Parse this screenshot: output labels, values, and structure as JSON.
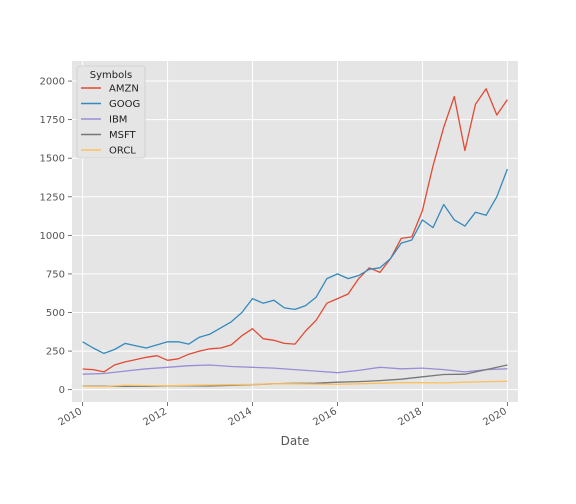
{
  "chart_data": {
    "type": "line",
    "title": "",
    "xlabel": "Date",
    "ylabel": "",
    "xlim": [
      2009.75,
      2020.25
    ],
    "ylim": [
      -80,
      2130
    ],
    "x_ticks": [
      2010,
      2012,
      2014,
      2016,
      2018,
      2020
    ],
    "y_ticks": [
      0,
      250,
      500,
      750,
      1000,
      1250,
      1500,
      1750,
      2000
    ],
    "grid": true,
    "legend": {
      "title": "Symbols",
      "position": "top-left"
    },
    "series": [
      {
        "name": "AMZN",
        "color": "#E24A33",
        "x": [
          2010.0,
          2010.25,
          2010.5,
          2010.75,
          2011.0,
          2011.25,
          2011.5,
          2011.75,
          2012.0,
          2012.25,
          2012.5,
          2012.75,
          2013.0,
          2013.25,
          2013.5,
          2013.75,
          2014.0,
          2014.25,
          2014.5,
          2014.75,
          2015.0,
          2015.25,
          2015.5,
          2015.75,
          2016.0,
          2016.25,
          2016.5,
          2016.75,
          2017.0,
          2017.25,
          2017.5,
          2017.75,
          2018.0,
          2018.25,
          2018.5,
          2018.75,
          2019.0,
          2019.25,
          2019.5,
          2019.75,
          2020.0
        ],
        "y": [
          134,
          130,
          115,
          160,
          180,
          195,
          210,
          220,
          190,
          200,
          230,
          250,
          265,
          270,
          290,
          350,
          395,
          330,
          320,
          300,
          295,
          380,
          450,
          560,
          590,
          620,
          720,
          790,
          760,
          850,
          980,
          990,
          1160,
          1450,
          1700,
          1900,
          1550,
          1850,
          1950,
          1780,
          1880
        ]
      },
      {
        "name": "GOOG",
        "color": "#348ABD",
        "x": [
          2010.0,
          2010.25,
          2010.5,
          2010.75,
          2011.0,
          2011.25,
          2011.5,
          2011.75,
          2012.0,
          2012.25,
          2012.5,
          2012.75,
          2013.0,
          2013.25,
          2013.5,
          2013.75,
          2014.0,
          2014.25,
          2014.5,
          2014.75,
          2015.0,
          2015.25,
          2015.5,
          2015.75,
          2016.0,
          2016.25,
          2016.5,
          2016.75,
          2017.0,
          2017.25,
          2017.5,
          2017.75,
          2018.0,
          2018.25,
          2018.5,
          2018.75,
          2019.0,
          2019.25,
          2019.5,
          2019.75,
          2020.0
        ],
        "y": [
          310,
          270,
          235,
          260,
          300,
          285,
          270,
          290,
          310,
          310,
          295,
          340,
          360,
          400,
          440,
          500,
          590,
          560,
          580,
          530,
          520,
          545,
          600,
          720,
          750,
          720,
          740,
          780,
          790,
          850,
          950,
          970,
          1100,
          1050,
          1200,
          1100,
          1060,
          1150,
          1130,
          1250,
          1430
        ]
      },
      {
        "name": "IBM",
        "color": "#988ED5",
        "x": [
          2010.0,
          2010.5,
          2011.0,
          2011.5,
          2012.0,
          2012.5,
          2013.0,
          2013.5,
          2014.0,
          2014.5,
          2015.0,
          2015.5,
          2016.0,
          2016.5,
          2017.0,
          2017.5,
          2018.0,
          2018.5,
          2019.0,
          2019.5,
          2020.0
        ],
        "y": [
          100,
          105,
          120,
          135,
          145,
          155,
          160,
          150,
          145,
          140,
          130,
          120,
          110,
          125,
          145,
          135,
          140,
          130,
          115,
          130,
          135
        ]
      },
      {
        "name": "MSFT",
        "color": "#777777",
        "x": [
          2010.0,
          2010.5,
          2011.0,
          2011.5,
          2012.0,
          2012.5,
          2013.0,
          2013.5,
          2014.0,
          2014.5,
          2015.0,
          2015.5,
          2016.0,
          2016.5,
          2017.0,
          2017.5,
          2018.0,
          2018.5,
          2019.0,
          2019.5,
          2020.0
        ],
        "y": [
          24,
          22,
          22,
          21,
          24,
          25,
          24,
          28,
          33,
          38,
          41,
          42,
          48,
          52,
          59,
          68,
          83,
          98,
          100,
          130,
          160
        ]
      },
      {
        "name": "ORCL",
        "color": "#FBC15E",
        "x": [
          2010.0,
          2010.5,
          2011.0,
          2011.5,
          2012.0,
          2012.5,
          2013.0,
          2013.5,
          2014.0,
          2014.5,
          2015.0,
          2015.5,
          2016.0,
          2016.5,
          2017.0,
          2017.5,
          2018.0,
          2018.5,
          2019.0,
          2019.5,
          2020.0
        ],
        "y": [
          22,
          20,
          28,
          26,
          25,
          28,
          30,
          32,
          34,
          38,
          38,
          36,
          35,
          38,
          42,
          46,
          45,
          44,
          48,
          52,
          54
        ]
      }
    ]
  }
}
